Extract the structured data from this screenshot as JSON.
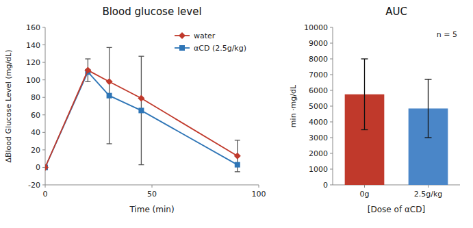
{
  "chart_data": [
    {
      "type": "line",
      "title": "Blood glucose level",
      "x_label": "Time (min)",
      "y_label": "ΔBlood Glucose Level (mg/dL)",
      "x": [
        0,
        20,
        30,
        45,
        90
      ],
      "series": [
        {
          "name": "water",
          "color": "#c0392b",
          "marker": "diamond",
          "values": [
            0,
            111,
            98,
            79,
            13
          ],
          "errors": [
            null,
            13,
            null,
            null,
            18
          ]
        },
        {
          "name": "αCD (2.5g/kg)",
          "color": "#2e75b6",
          "marker": "square",
          "values": [
            0,
            109,
            82,
            65,
            3
          ],
          "errors": [
            null,
            null,
            55,
            62,
            null
          ]
        }
      ],
      "xlim": [
        0,
        100
      ],
      "xticks": [
        0,
        50,
        100
      ],
      "ylim": [
        -20,
        160
      ],
      "yticks": [
        -20,
        0,
        20,
        40,
        60,
        80,
        100,
        120,
        140,
        160
      ],
      "legend": "upper right",
      "grid": false
    },
    {
      "type": "bar",
      "title": "AUC",
      "x_label": "[Dose of αCD]",
      "y_label": "min ·mg/dL",
      "annotation": "n = 5",
      "categories": [
        "0g",
        "2.5g/kg"
      ],
      "values": [
        5750,
        4850
      ],
      "errors": [
        2250,
        1850
      ],
      "colors": [
        "#c0392b",
        "#4a86c8"
      ],
      "ylim": [
        0,
        10000
      ],
      "yticks": [
        0,
        1000,
        2000,
        3000,
        4000,
        5000,
        6000,
        7000,
        8000,
        9000,
        10000
      ],
      "grid": false
    }
  ]
}
